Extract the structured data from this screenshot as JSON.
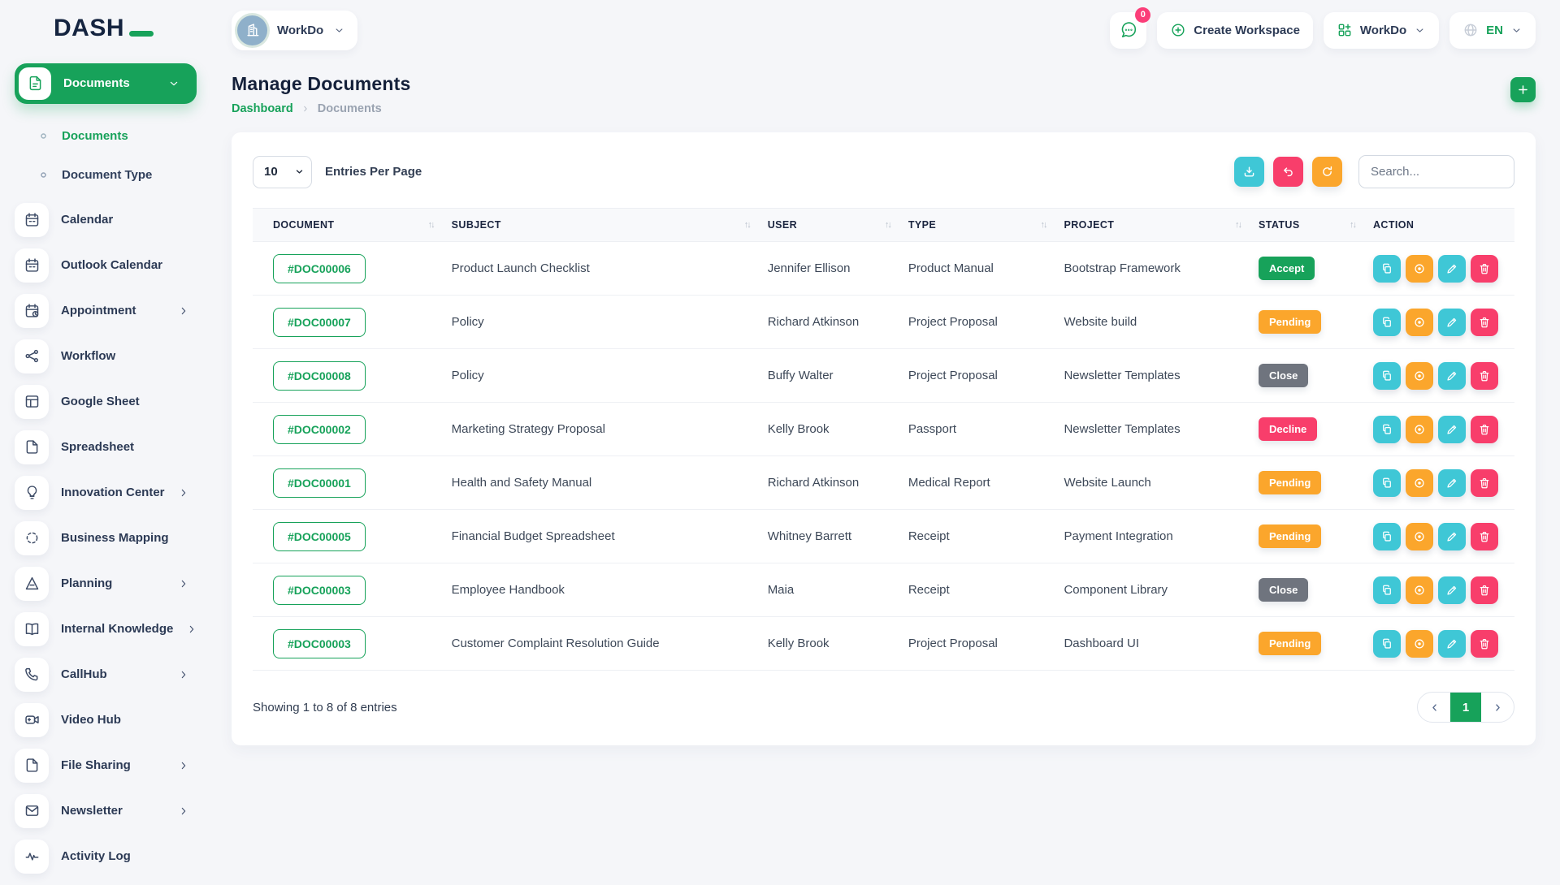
{
  "colors": {
    "green": "#17a25a",
    "cyan": "#3fc7d6",
    "orange": "#fba62c",
    "pink": "#f83e6b",
    "gray": "#6f747e",
    "badge_pink": "#fb3e79"
  },
  "brand": {
    "logo_text": "DASH"
  },
  "topbar": {
    "workspace": {
      "label": "WorkDo"
    },
    "messages": {
      "badge": "0"
    },
    "create_workspace": {
      "label": "Create Workspace"
    },
    "workspace_menu": {
      "label": "WorkDo"
    },
    "language": {
      "label": "EN"
    }
  },
  "sidebar": {
    "items": [
      {
        "label": "Documents",
        "icon": "document",
        "active": true,
        "chevron": "down",
        "children": [
          {
            "label": "Documents",
            "active": true
          },
          {
            "label": "Document Type",
            "active": false
          }
        ]
      },
      {
        "label": "Calendar",
        "icon": "calendar"
      },
      {
        "label": "Outlook Calendar",
        "icon": "calendar"
      },
      {
        "label": "Appointment",
        "icon": "calendar-clock",
        "chevron": "right"
      },
      {
        "label": "Workflow",
        "icon": "workflow"
      },
      {
        "label": "Google Sheet",
        "icon": "table"
      },
      {
        "label": "Spreadsheet",
        "icon": "file"
      },
      {
        "label": "Innovation Center",
        "icon": "lightbulb",
        "chevron": "right"
      },
      {
        "label": "Business Mapping",
        "icon": "dashed-circle"
      },
      {
        "label": "Planning",
        "icon": "set-square",
        "chevron": "right"
      },
      {
        "label": "Internal Knowledge",
        "icon": "book",
        "chevron": "right"
      },
      {
        "label": "CallHub",
        "icon": "phone",
        "chevron": "right"
      },
      {
        "label": "Video Hub",
        "icon": "video"
      },
      {
        "label": "File Sharing",
        "icon": "file",
        "chevron": "right"
      },
      {
        "label": "Newsletter",
        "icon": "envelope",
        "chevron": "right"
      },
      {
        "label": "Activity Log",
        "icon": "activity"
      }
    ]
  },
  "page": {
    "title": "Manage Documents",
    "breadcrumb": {
      "home": "Dashboard",
      "current": "Documents"
    }
  },
  "card": {
    "entries": {
      "value": "10",
      "label": "Entries Per Page"
    },
    "toolbar": [
      {
        "name": "export",
        "icon": "download",
        "color": "cyan"
      },
      {
        "name": "undo",
        "icon": "undo",
        "color": "pink"
      },
      {
        "name": "refresh",
        "icon": "refresh",
        "color": "orange"
      }
    ],
    "search_placeholder": "Search...",
    "table": {
      "columns": [
        {
          "label": "DOCUMENT",
          "sortable": true
        },
        {
          "label": "SUBJECT",
          "sortable": true
        },
        {
          "label": "USER",
          "sortable": true
        },
        {
          "label": "TYPE",
          "sortable": true
        },
        {
          "label": "PROJECT",
          "sortable": true
        },
        {
          "label": "STATUS",
          "sortable": true
        },
        {
          "label": "ACTION",
          "sortable": false
        }
      ],
      "rows": [
        {
          "document": "#DOC00006",
          "subject": "Product Launch Checklist",
          "user": "Jennifer Ellison",
          "type": "Product Manual",
          "project": "Bootstrap Framework",
          "status": {
            "label": "Accept",
            "color": "green"
          }
        },
        {
          "document": "#DOC00007",
          "subject": "Policy",
          "user": "Richard Atkinson",
          "type": "Project Proposal",
          "project": "Website build",
          "status": {
            "label": "Pending",
            "color": "orange"
          }
        },
        {
          "document": "#DOC00008",
          "subject": "Policy",
          "user": "Buffy Walter",
          "type": "Project Proposal",
          "project": "Newsletter Templates",
          "status": {
            "label": "Close",
            "color": "gray"
          }
        },
        {
          "document": "#DOC00002",
          "subject": "Marketing Strategy Proposal",
          "user": "Kelly Brook",
          "type": "Passport",
          "project": "Newsletter Templates",
          "status": {
            "label": "Decline",
            "color": "pink"
          }
        },
        {
          "document": "#DOC00001",
          "subject": "Health and Safety Manual",
          "user": "Richard Atkinson",
          "type": "Medical Report",
          "project": "Website Launch",
          "status": {
            "label": "Pending",
            "color": "orange"
          }
        },
        {
          "document": "#DOC00005",
          "subject": "Financial Budget Spreadsheet",
          "user": "Whitney Barrett",
          "type": "Receipt",
          "project": "Payment Integration",
          "status": {
            "label": "Pending",
            "color": "orange"
          }
        },
        {
          "document": "#DOC00003",
          "subject": "Employee Handbook",
          "user": "Maia",
          "type": "Receipt",
          "project": "Component Library",
          "status": {
            "label": "Close",
            "color": "gray"
          }
        },
        {
          "document": "#DOC00003",
          "subject": "Customer Complaint Resolution Guide",
          "user": "Kelly Brook",
          "type": "Project Proposal",
          "project": "Dashboard UI",
          "status": {
            "label": "Pending",
            "color": "orange"
          }
        }
      ],
      "row_actions": [
        {
          "name": "duplicate",
          "icon": "copy",
          "color": "cyan"
        },
        {
          "name": "view",
          "icon": "target",
          "color": "orange"
        },
        {
          "name": "edit",
          "icon": "pencil",
          "color": "cyan"
        },
        {
          "name": "delete",
          "icon": "trash",
          "color": "pink"
        }
      ],
      "sort_glyph": "↑↓"
    },
    "footer": {
      "summary": "Showing 1 to 8 of 8 entries",
      "pagination": {
        "current_page": "1"
      }
    }
  }
}
